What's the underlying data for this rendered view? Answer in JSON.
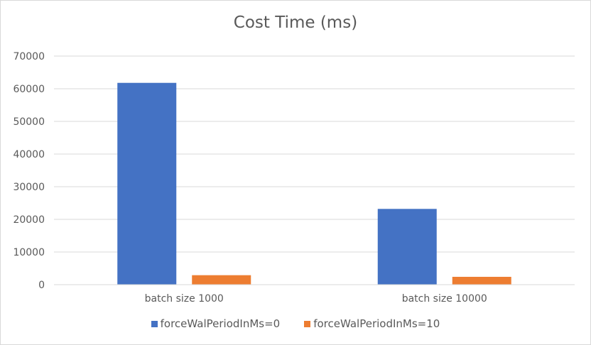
{
  "chart_data": {
    "type": "bar",
    "title": "Cost Time (ms)",
    "categories": [
      "batch size 1000",
      "batch size 10000"
    ],
    "series": [
      {
        "name": "forceWalPeriodInMs=0",
        "color": "#4472c4",
        "values": [
          61800,
          23200
        ]
      },
      {
        "name": "forceWalPeriodInMs=10",
        "color": "#ed7d31",
        "values": [
          2900,
          2400
        ]
      }
    ],
    "ylim": [
      0,
      70000
    ],
    "yticks": [
      "0",
      "10000",
      "20000",
      "30000",
      "40000",
      "50000",
      "60000",
      "70000"
    ],
    "grid": true,
    "legend_position": "bottom"
  }
}
